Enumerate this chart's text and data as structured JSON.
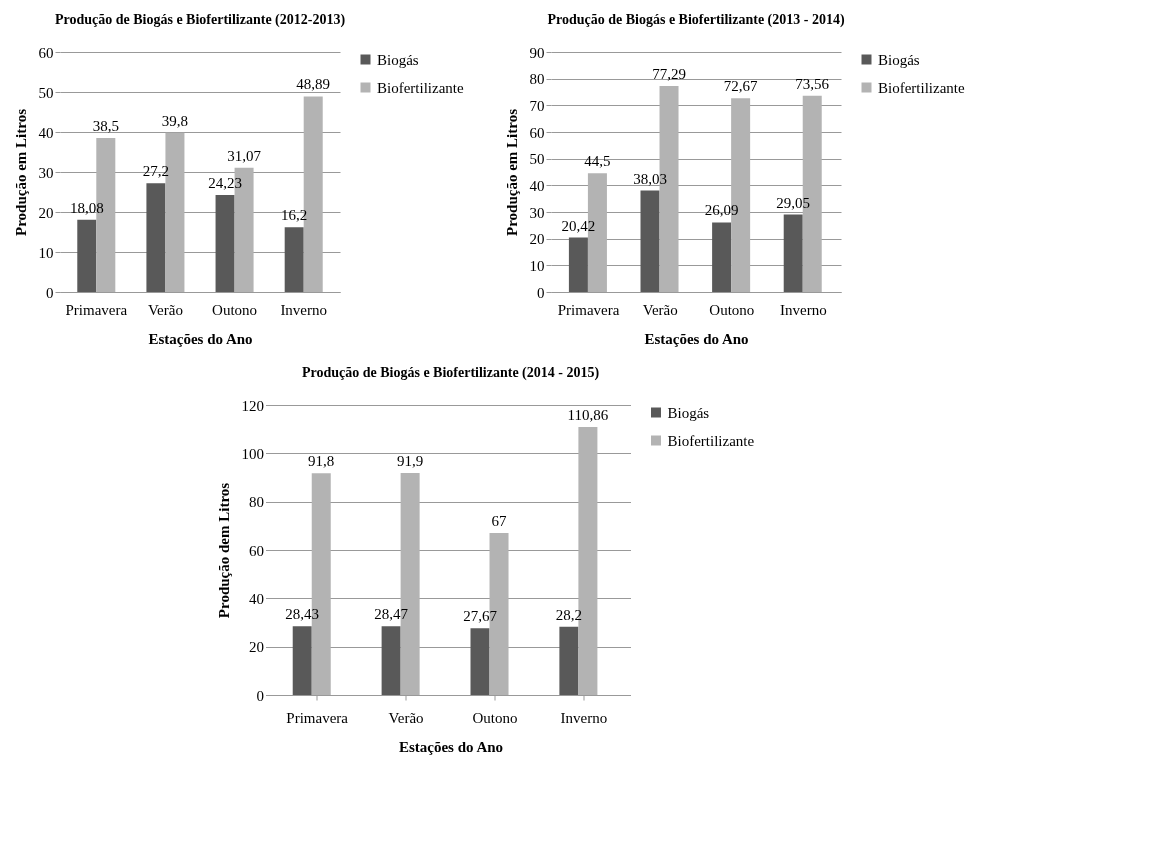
{
  "chart_data": [
    {
      "type": "bar",
      "title": "Produção de Biogás e Biofertilizante (2012-2013)",
      "xlabel": "Estações do Ano",
      "ylabel": "Produção em Litros",
      "categories": [
        "Primavera",
        "Verão",
        "Outono",
        "Inverno"
      ],
      "ylim": [
        0,
        60
      ],
      "yticks": [
        0,
        10,
        20,
        30,
        40,
        50,
        60
      ],
      "grid": "y",
      "legend": "right",
      "series": [
        {
          "name": "Biogás",
          "color": "#595959",
          "values": [
            18.08,
            27.2,
            24.23,
            16.2
          ],
          "value_labels": [
            "18,08",
            "27,2",
            "24,23",
            "16,2"
          ]
        },
        {
          "name": "Biofertilizante",
          "color": "#b3b3b3",
          "values": [
            38.5,
            39.8,
            31.07,
            48.89
          ],
          "value_labels": [
            "38,5",
            "39,8",
            "31,07",
            "48,89"
          ]
        }
      ]
    },
    {
      "type": "bar",
      "title": "Produção de Biogás e Biofertilizante (2013 - 2014)",
      "xlabel": "Estações do Ano",
      "ylabel": "Produção em Litros",
      "categories": [
        "Primavera",
        "Verão",
        "Outono",
        "Inverno"
      ],
      "ylim": [
        0,
        90
      ],
      "yticks": [
        0,
        10,
        20,
        30,
        40,
        50,
        60,
        70,
        80,
        90
      ],
      "grid": "y",
      "legend": "right",
      "series": [
        {
          "name": "Biogás",
          "color": "#595959",
          "values": [
            20.42,
            38.03,
            26.09,
            29.05
          ],
          "value_labels": [
            "20,42",
            "38,03",
            "26,09",
            "29,05"
          ]
        },
        {
          "name": "Biofertilizante",
          "color": "#b3b3b3",
          "values": [
            44.5,
            77.29,
            72.67,
            73.56
          ],
          "value_labels": [
            "44,5",
            "77,29",
            "72,67",
            "73,56"
          ]
        }
      ]
    },
    {
      "type": "bar",
      "title": "Produção de Biogás e Biofertilizante (2014 - 2015)",
      "xlabel": "Estações do Ano",
      "ylabel": "Produção dem Litros",
      "categories": [
        "Primavera",
        "Verão",
        "Outono",
        "Inverno"
      ],
      "ylim": [
        0,
        120
      ],
      "yticks": [
        0,
        20,
        40,
        60,
        80,
        100,
        120
      ],
      "grid": "y",
      "legend": "right",
      "series": [
        {
          "name": "Biogás",
          "color": "#595959",
          "values": [
            28.43,
            28.47,
            27.67,
            28.2
          ],
          "value_labels": [
            "28,43",
            "28,47",
            "27,67",
            "28,2"
          ]
        },
        {
          "name": "Biofertilizante",
          "color": "#b3b3b3",
          "values": [
            91.8,
            91.9,
            67,
            110.86
          ],
          "value_labels": [
            "91,8",
            "91,9",
            "67",
            "110,86"
          ]
        }
      ]
    }
  ]
}
